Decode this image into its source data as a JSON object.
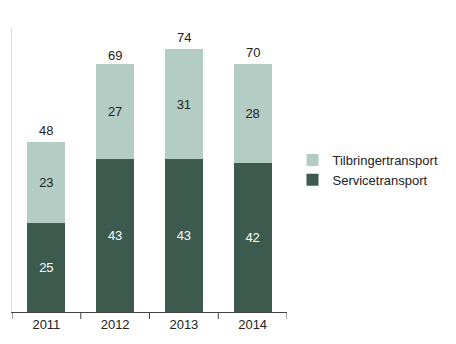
{
  "chart_data": {
    "type": "bar",
    "stacked": true,
    "categories": [
      "2011",
      "2012",
      "2013",
      "2014"
    ],
    "series": [
      {
        "name": "Servicetransport",
        "color": "#3d5a4f",
        "values": [
          25,
          43,
          43,
          42
        ]
      },
      {
        "name": "Tilbringertransport",
        "color": "#b3cdc4",
        "values": [
          23,
          27,
          31,
          28
        ]
      }
    ],
    "totals": [
      48,
      69,
      74,
      70
    ],
    "ylim": [
      0,
      80
    ],
    "yticks": [],
    "tick_labels": "x",
    "data_labels": true,
    "legend": "right",
    "grid": false
  }
}
